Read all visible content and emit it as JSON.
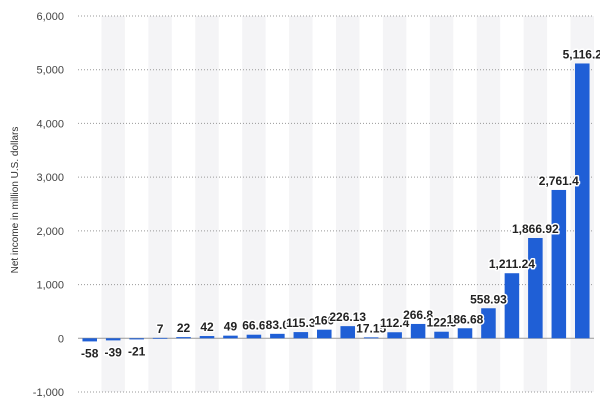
{
  "chart_data": {
    "type": "bar",
    "title": "",
    "xlabel": "",
    "ylabel": "Net income in million U.S. dollars",
    "ylim": [
      -1000,
      6000
    ],
    "yticks": [
      6000,
      5000,
      4000,
      3000,
      2000,
      1000,
      0,
      -1000
    ],
    "ytick_labels": [
      "6,000",
      "5,000",
      "4,000",
      "3,000",
      "2,000",
      "1,000",
      "0",
      "-1,000"
    ],
    "grid": true,
    "bar_color": "#1f5fd6",
    "stripe_color": "#f4f4f6",
    "categories": [
      "",
      "",
      "",
      "",
      "",
      "",
      "",
      "",
      "",
      "",
      "",
      "",
      "",
      "",
      "",
      "",
      "",
      "",
      "",
      "",
      "",
      ""
    ],
    "values": [
      -58,
      -39,
      -21,
      7,
      22,
      42,
      49,
      66.6,
      83.0,
      115.3,
      160,
      226.13,
      17.15,
      112.4,
      266.8,
      122.3,
      186.68,
      558.93,
      1211.24,
      1866.92,
      2761.4,
      5116.2
    ],
    "data_labels": [
      "-58",
      "-39",
      "-21",
      "7",
      "22",
      "42",
      "49",
      "66.6",
      "83.0",
      "115.3",
      "160",
      "226.13",
      "17.15",
      "112.4",
      "266.8",
      "122.3",
      "186.68",
      "558.93",
      "1,211.24",
      "1,866.92",
      "2,761.4",
      "5,116.2"
    ]
  }
}
